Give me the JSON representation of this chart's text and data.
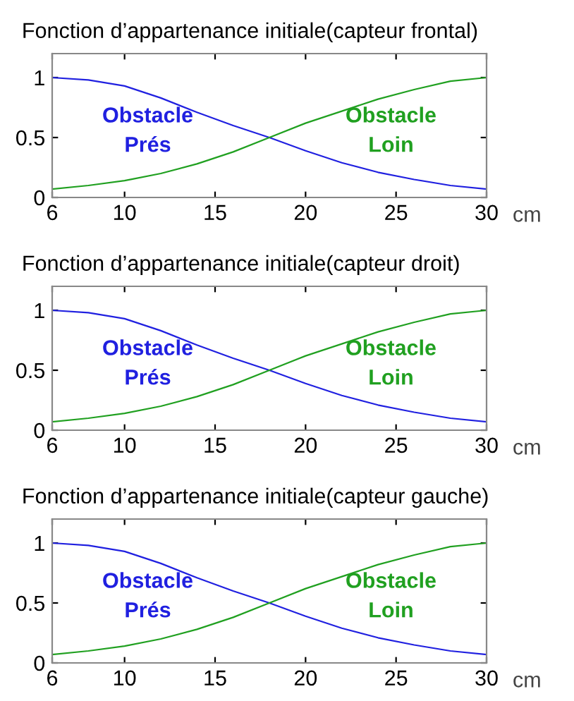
{
  "chart_data": [
    {
      "type": "line",
      "title": "Fonction d’appartenance initiale(capteur frontal)",
      "xlabel": "cm",
      "x": [
        6,
        8,
        10,
        12,
        14,
        16,
        18,
        20,
        22,
        24,
        26,
        28,
        30
      ],
      "xlim": [
        6,
        30
      ],
      "xticks": [
        6,
        10,
        15,
        20,
        25,
        30
      ],
      "ylim": [
        0,
        1.2
      ],
      "yticks": [
        0,
        0.5,
        1
      ],
      "grid": false,
      "legend": false,
      "series": [
        {
          "name": "Obstacle\nPrés",
          "color": "#2020e0",
          "values": [
            1.0,
            0.98,
            0.93,
            0.83,
            0.71,
            0.6,
            0.5,
            0.39,
            0.29,
            0.21,
            0.15,
            0.1,
            0.07
          ]
        },
        {
          "name": "Obstacle\nLoin",
          "color": "#20a020",
          "values": [
            0.07,
            0.1,
            0.14,
            0.2,
            0.28,
            0.38,
            0.5,
            0.62,
            0.72,
            0.82,
            0.9,
            0.97,
            1.0
          ]
        }
      ]
    },
    {
      "type": "line",
      "title": "Fonction d’appartenance initiale(capteur droit)",
      "xlabel": "cm",
      "x": [
        6,
        8,
        10,
        12,
        14,
        16,
        18,
        20,
        22,
        24,
        26,
        28,
        30
      ],
      "xlim": [
        6,
        30
      ],
      "xticks": [
        6,
        10,
        15,
        20,
        25,
        30
      ],
      "ylim": [
        0,
        1.2
      ],
      "yticks": [
        0,
        0.5,
        1
      ],
      "grid": false,
      "legend": false,
      "series": [
        {
          "name": "Obstacle\nPrés",
          "color": "#2020e0",
          "values": [
            1.0,
            0.98,
            0.93,
            0.83,
            0.71,
            0.6,
            0.5,
            0.39,
            0.29,
            0.21,
            0.15,
            0.1,
            0.07
          ]
        },
        {
          "name": "Obstacle\nLoin",
          "color": "#20a020",
          "values": [
            0.07,
            0.1,
            0.14,
            0.2,
            0.28,
            0.38,
            0.5,
            0.62,
            0.72,
            0.82,
            0.9,
            0.97,
            1.0
          ]
        }
      ]
    },
    {
      "type": "line",
      "title": "Fonction d’appartenance initiale(capteur gauche)",
      "xlabel": "cm",
      "x": [
        6,
        8,
        10,
        12,
        14,
        16,
        18,
        20,
        22,
        24,
        26,
        28,
        30
      ],
      "xlim": [
        6,
        30
      ],
      "xticks": [
        6,
        10,
        15,
        20,
        25,
        30
      ],
      "ylim": [
        0,
        1.2
      ],
      "yticks": [
        0,
        0.5,
        1
      ],
      "grid": false,
      "legend": false,
      "series": [
        {
          "name": "Obstacle\nPrés",
          "color": "#2020e0",
          "values": [
            1.0,
            0.98,
            0.93,
            0.83,
            0.71,
            0.6,
            0.5,
            0.39,
            0.29,
            0.21,
            0.15,
            0.1,
            0.07
          ]
        },
        {
          "name": "Obstacle\nLoin",
          "color": "#20a020",
          "values": [
            0.07,
            0.1,
            0.14,
            0.2,
            0.28,
            0.38,
            0.5,
            0.62,
            0.72,
            0.82,
            0.9,
            0.97,
            1.0
          ]
        }
      ]
    }
  ]
}
